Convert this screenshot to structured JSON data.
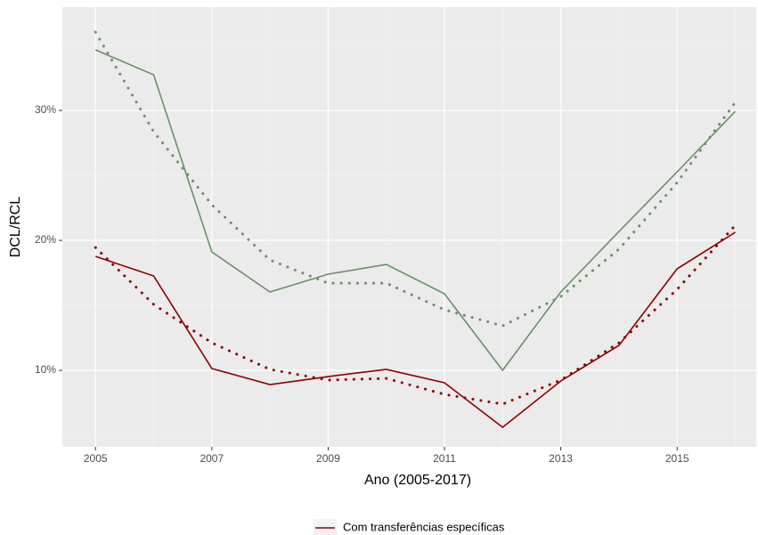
{
  "chart_data": {
    "type": "line",
    "x_label": "Ano (2005-2017)",
    "y_label": "DCL/RCL",
    "x": [
      2005,
      2006,
      2007,
      2008,
      2009,
      2010,
      2011,
      2012,
      2013,
      2014,
      2015,
      2016
    ],
    "series": [
      {
        "color": "#6b8e6b",
        "line_style": "solid",
        "values": [
          34.66,
          32.74,
          19.11,
          16.03,
          17.4,
          18.15,
          15.89,
          10.0,
          16.03,
          20.68,
          25.27,
          29.93
        ]
      },
      {
        "color": "#6b8e6b",
        "line_style": "dotted",
        "values": [
          36.03,
          28.36,
          22.74,
          18.49,
          16.71,
          16.71,
          14.66,
          13.42,
          15.68,
          19.32,
          24.45,
          30.62
        ]
      },
      {
        "name": "Com transferências específicas",
        "color": "#8b0000",
        "line_style": "solid",
        "values": [
          18.77,
          17.26,
          10.14,
          8.9,
          9.52,
          10.07,
          9.04,
          5.62,
          9.18,
          11.92,
          17.81,
          20.62
        ]
      },
      {
        "color": "#8b0000",
        "line_style": "dotted",
        "values": [
          19.45,
          15.07,
          12.12,
          10.07,
          9.25,
          9.38,
          8.15,
          7.4,
          9.25,
          12.12,
          16.23,
          21.16
        ]
      }
    ],
    "xlim": [
      2004.43,
      2016.36
    ],
    "ylim": [
      4.11,
      37.95
    ],
    "xticks": [
      2005,
      2007,
      2009,
      2011,
      2013,
      2015
    ],
    "x_minor_ticks": [
      2006,
      2008,
      2010,
      2012,
      2014,
      2016
    ],
    "yticks": [
      {
        "value": 10,
        "label": "10%"
      },
      {
        "value": 20,
        "label": "20%"
      },
      {
        "value": 30,
        "label": "30%"
      }
    ],
    "y_minor_ticks": [
      5,
      15,
      25,
      35
    ],
    "grid": true,
    "legend_position": "bottom"
  }
}
